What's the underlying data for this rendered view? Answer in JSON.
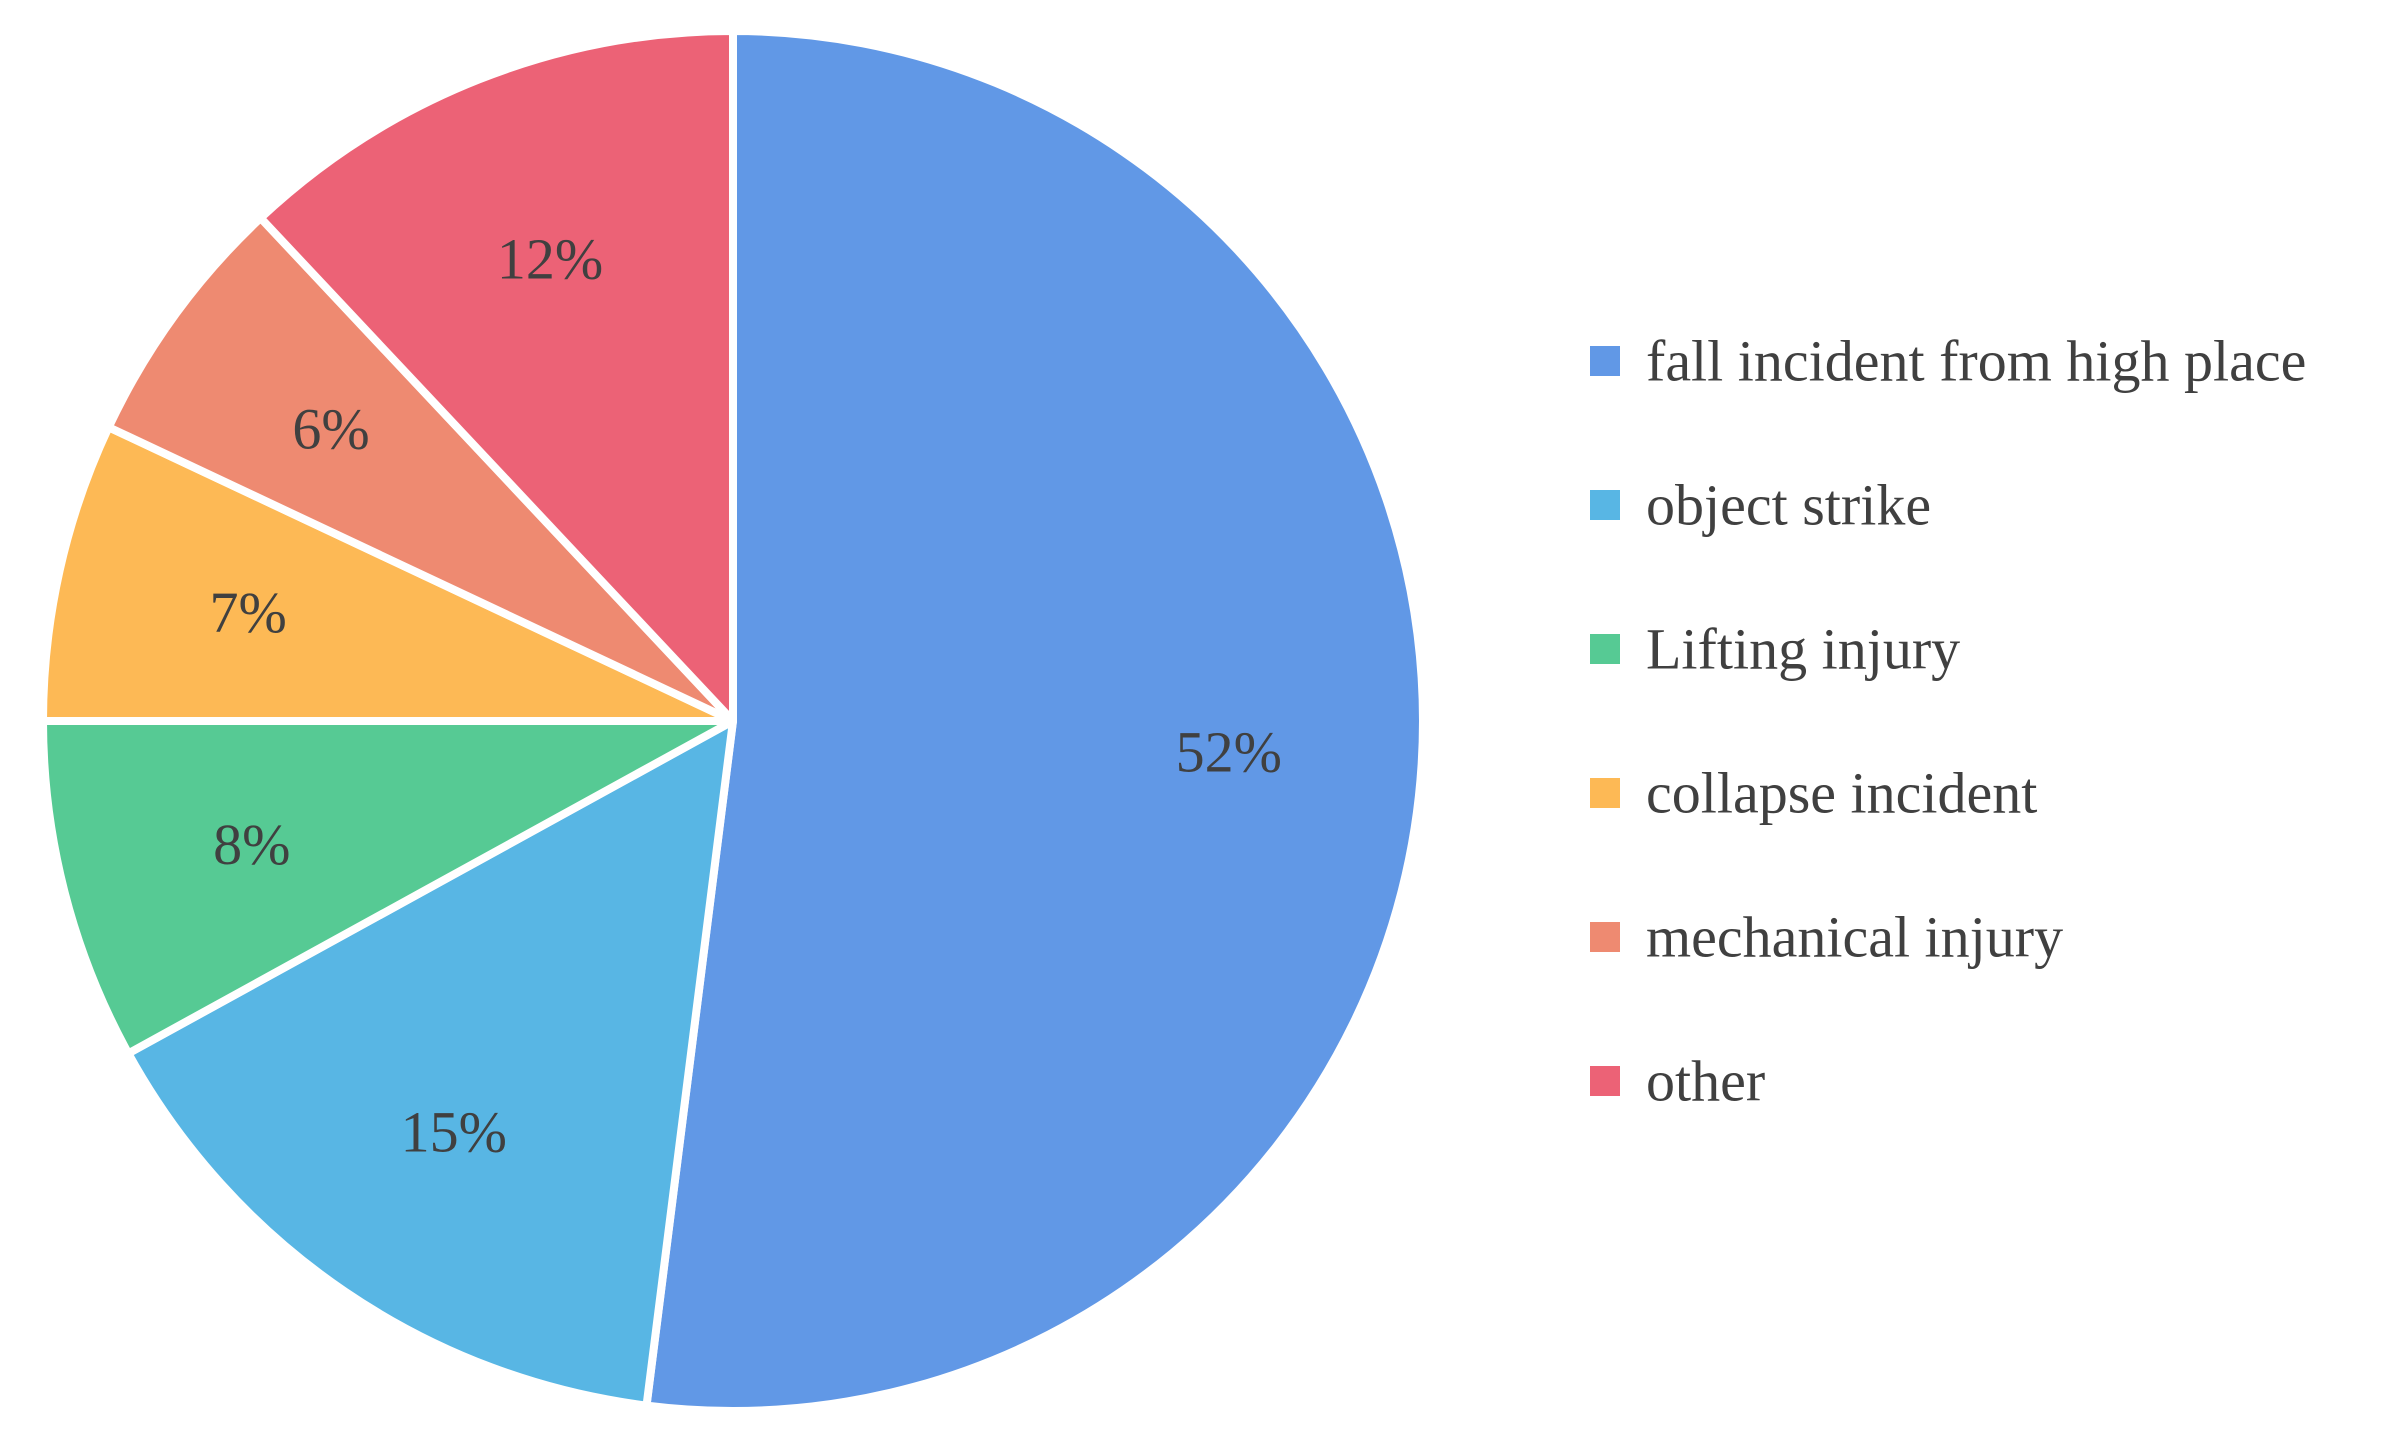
{
  "chart_data": {
    "type": "pie",
    "title": "",
    "start_angle": "12 o'clock",
    "direction": "clockwise",
    "legend_placement": "right",
    "series": [
      {
        "values": [
          {
            "label": "fall incident from high place",
            "value": 52,
            "display": "52%",
            "color": "#6198E6"
          },
          {
            "label": "object strike",
            "value": 15,
            "display": "15%",
            "color": "#58B6E4"
          },
          {
            "label": "Lifting injury",
            "value": 8,
            "display": "8%",
            "color": "#56CA94"
          },
          {
            "label": "collapse incident",
            "value": 7,
            "display": "7%",
            "color": "#FDB955"
          },
          {
            "label": "mechanical injury",
            "value": 6,
            "display": "6%",
            "color": "#EE8A71"
          },
          {
            "label": "other",
            "value": 12,
            "display": "12%",
            "color": "#EC6276"
          }
        ]
      }
    ]
  }
}
